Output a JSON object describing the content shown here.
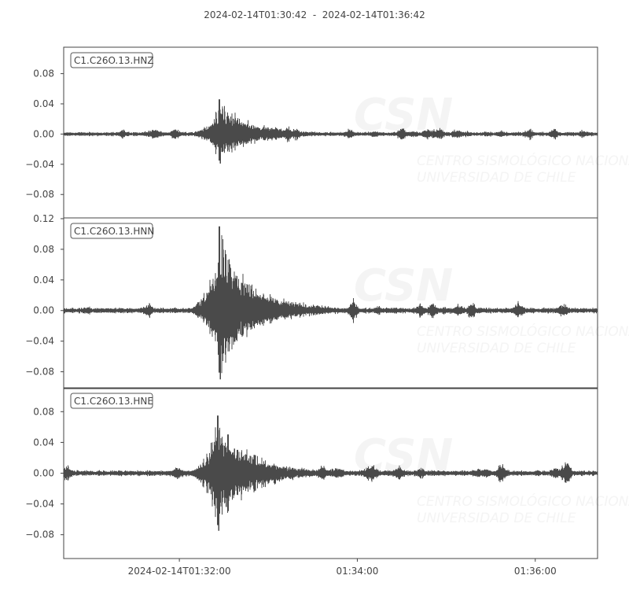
{
  "chart_data": {
    "type": "line",
    "title": "2024-02-14T01:30:42  -  2024-02-14T01:36:42",
    "x_range": [
      "2024-02-14T01:30:42",
      "2024-02-14T01:36:42"
    ],
    "x_ticks": [
      {
        "time": "2024-02-14T01:32:00",
        "label": "2024-02-14T01:32:00"
      },
      {
        "time": "2024-02-14T01:34:00",
        "label": "01:34:00"
      },
      {
        "time": "2024-02-14T01:36:00",
        "label": "01:36:00"
      }
    ],
    "grid": false,
    "watermark": {
      "logo": "CSN",
      "line1": "CENTRO SISMOLÓGICO NACIONAL",
      "line2": "UNIVERSIDAD DE CHILE"
    },
    "trace_color": "#4a4a4a",
    "panels": [
      {
        "label": "C1.C26O.13.HNZ",
        "ylim": [
          -0.111,
          0.115
        ],
        "y_ticks": [
          {
            "v": 0.08,
            "label": "0.08"
          },
          {
            "v": 0.04,
            "label": "0.04"
          },
          {
            "v": 0,
            "label": "0.00"
          },
          {
            "v": -0.04,
            "label": "−0.04"
          },
          {
            "v": -0.08,
            "label": "−0.08"
          }
        ],
        "noise_level": 0.003,
        "onset": "2024-02-14T01:32:06",
        "peak_time": "2024-02-14T01:32:27",
        "peak_max": 0.046,
        "peak_min": -0.039
      },
      {
        "label": "C1.C26O.13.HNN",
        "ylim": [
          -0.102,
          0.121
        ],
        "y_ticks": [
          {
            "v": 0.12,
            "label": "0.12"
          },
          {
            "v": 0.08,
            "label": "0.08"
          },
          {
            "v": 0.04,
            "label": "0.04"
          },
          {
            "v": 0,
            "label": "0.00"
          },
          {
            "v": -0.04,
            "label": "−0.04"
          },
          {
            "v": -0.08,
            "label": "−0.08"
          }
        ],
        "noise_level": 0.004,
        "onset": "2024-02-14T01:32:06",
        "peak_time": "2024-02-14T01:32:27",
        "peak_max": 0.11,
        "peak_min": -0.09
      },
      {
        "label": "C1.C26O.13.HNE",
        "ylim": [
          -0.111,
          0.111
        ],
        "y_ticks": [
          {
            "v": 0.08,
            "label": "0.08"
          },
          {
            "v": 0.04,
            "label": "0.04"
          },
          {
            "v": 0,
            "label": "0.00"
          },
          {
            "v": -0.04,
            "label": "−0.04"
          },
          {
            "v": -0.08,
            "label": "−0.08"
          }
        ],
        "noise_level": 0.004,
        "onset": "2024-02-14T01:32:04",
        "peak_time": "2024-02-14T01:32:26",
        "peak_max": 0.075,
        "peak_min": -0.075
      }
    ]
  }
}
